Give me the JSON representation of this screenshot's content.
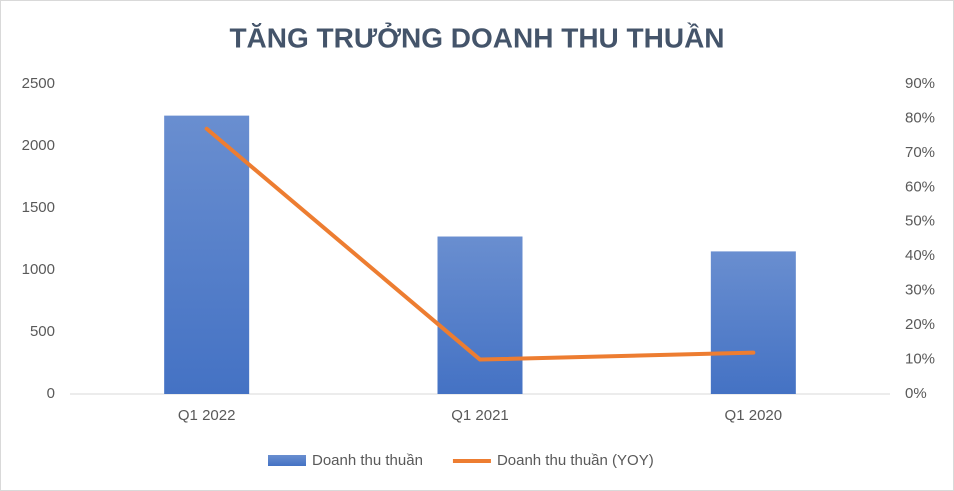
{
  "chart_data": {
    "type": "bar",
    "title": "TĂNG TRƯỞNG DOANH THU THUẦN",
    "categories": [
      "Q1 2022",
      "Q1 2021",
      "Q1 2020"
    ],
    "series": [
      {
        "name": "Doanh thu thuần",
        "type": "bar",
        "color": "#4472c4",
        "values": [
          2245,
          1270,
          1150
        ]
      },
      {
        "name": "Doanh thu thuần (YOY)",
        "type": "line",
        "axis": "y2",
        "color": "#ed7d31",
        "values": [
          77,
          10,
          12
        ]
      }
    ],
    "ylim": [
      0,
      2500
    ],
    "yticks": [
      0,
      500,
      1000,
      1500,
      2000,
      2500
    ],
    "y2lim": [
      0,
      90
    ],
    "y2ticks": [
      {
        "value": 0,
        "label": "0%"
      },
      {
        "value": 10,
        "label": "10%"
      },
      {
        "value": 20,
        "label": "20%"
      },
      {
        "value": 30,
        "label": "30%"
      },
      {
        "value": 40,
        "label": "40%"
      },
      {
        "value": 50,
        "label": "50%"
      },
      {
        "value": 60,
        "label": "60%"
      },
      {
        "value": 70,
        "label": "70%"
      },
      {
        "value": 80,
        "label": "80%"
      },
      {
        "value": 90,
        "label": "90%"
      }
    ],
    "grid": false,
    "legend": "bottom"
  }
}
